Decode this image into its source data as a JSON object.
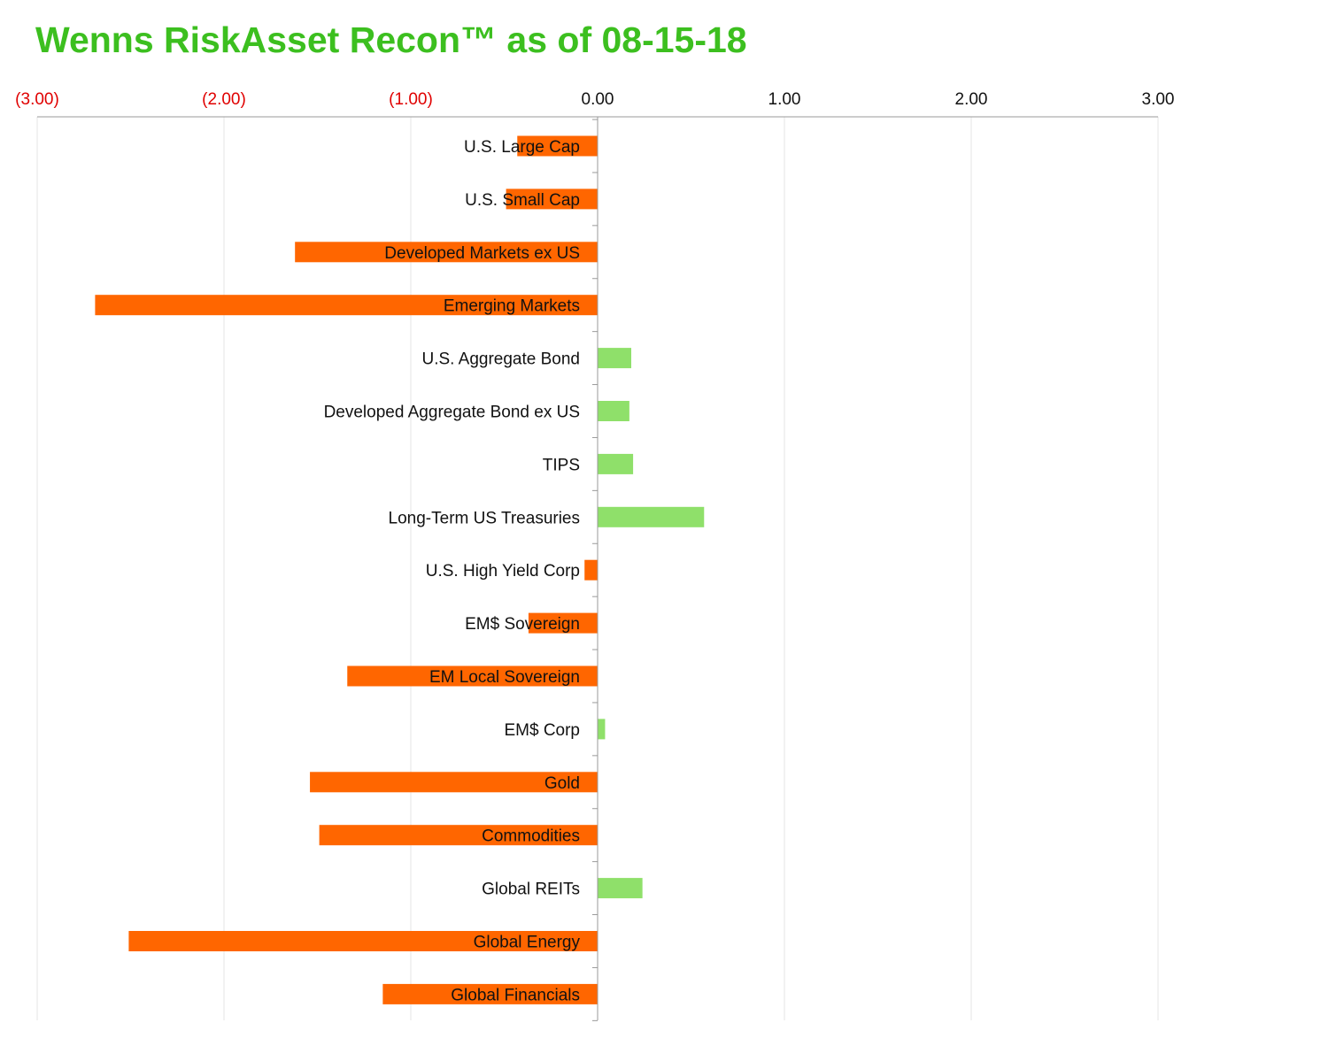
{
  "title": "Wenns RiskAsset Recon™ as of 08-15-18",
  "colors": {
    "title": "#3cbf1f",
    "negative_bar": "#ff6600",
    "positive_bar": "#8fe06a",
    "negative_tick": "#e00000",
    "positive_tick": "#111111",
    "grid": "#e6e6e6",
    "axis": "#999999"
  },
  "chart_data": {
    "type": "bar",
    "orientation": "horizontal",
    "title": "Wenns RiskAsset Recon™ as of 08-15-18",
    "xlim": [
      -3,
      3
    ],
    "x_ticks": [
      {
        "value": -3,
        "label": "(3.00)"
      },
      {
        "value": -2,
        "label": "(2.00)"
      },
      {
        "value": -1,
        "label": "(1.00)"
      },
      {
        "value": 0,
        "label": "0.00"
      },
      {
        "value": 1,
        "label": "1.00"
      },
      {
        "value": 2,
        "label": "2.00"
      },
      {
        "value": 3,
        "label": "3.00"
      }
    ],
    "x_axis_position": "top",
    "grid": true,
    "categories": [
      "U.S. Large Cap",
      "U.S. Small Cap",
      "Developed Markets ex US",
      "Emerging Markets",
      "U.S. Aggregate Bond",
      "Developed Aggregate Bond ex US",
      "TIPS",
      "Long-Term US Treasuries",
      "U.S. High Yield Corp",
      "EM$ Sovereign",
      "EM Local Sovereign",
      "EM$ Corp",
      "Gold",
      "Commodities",
      "Global REITs",
      "Global Energy",
      "Global Financials"
    ],
    "values": [
      -0.43,
      -0.49,
      -1.62,
      -2.69,
      0.18,
      0.17,
      0.19,
      0.57,
      -0.07,
      -0.37,
      -1.34,
      0.04,
      -1.54,
      -1.49,
      0.24,
      -2.51,
      -1.15
    ]
  }
}
